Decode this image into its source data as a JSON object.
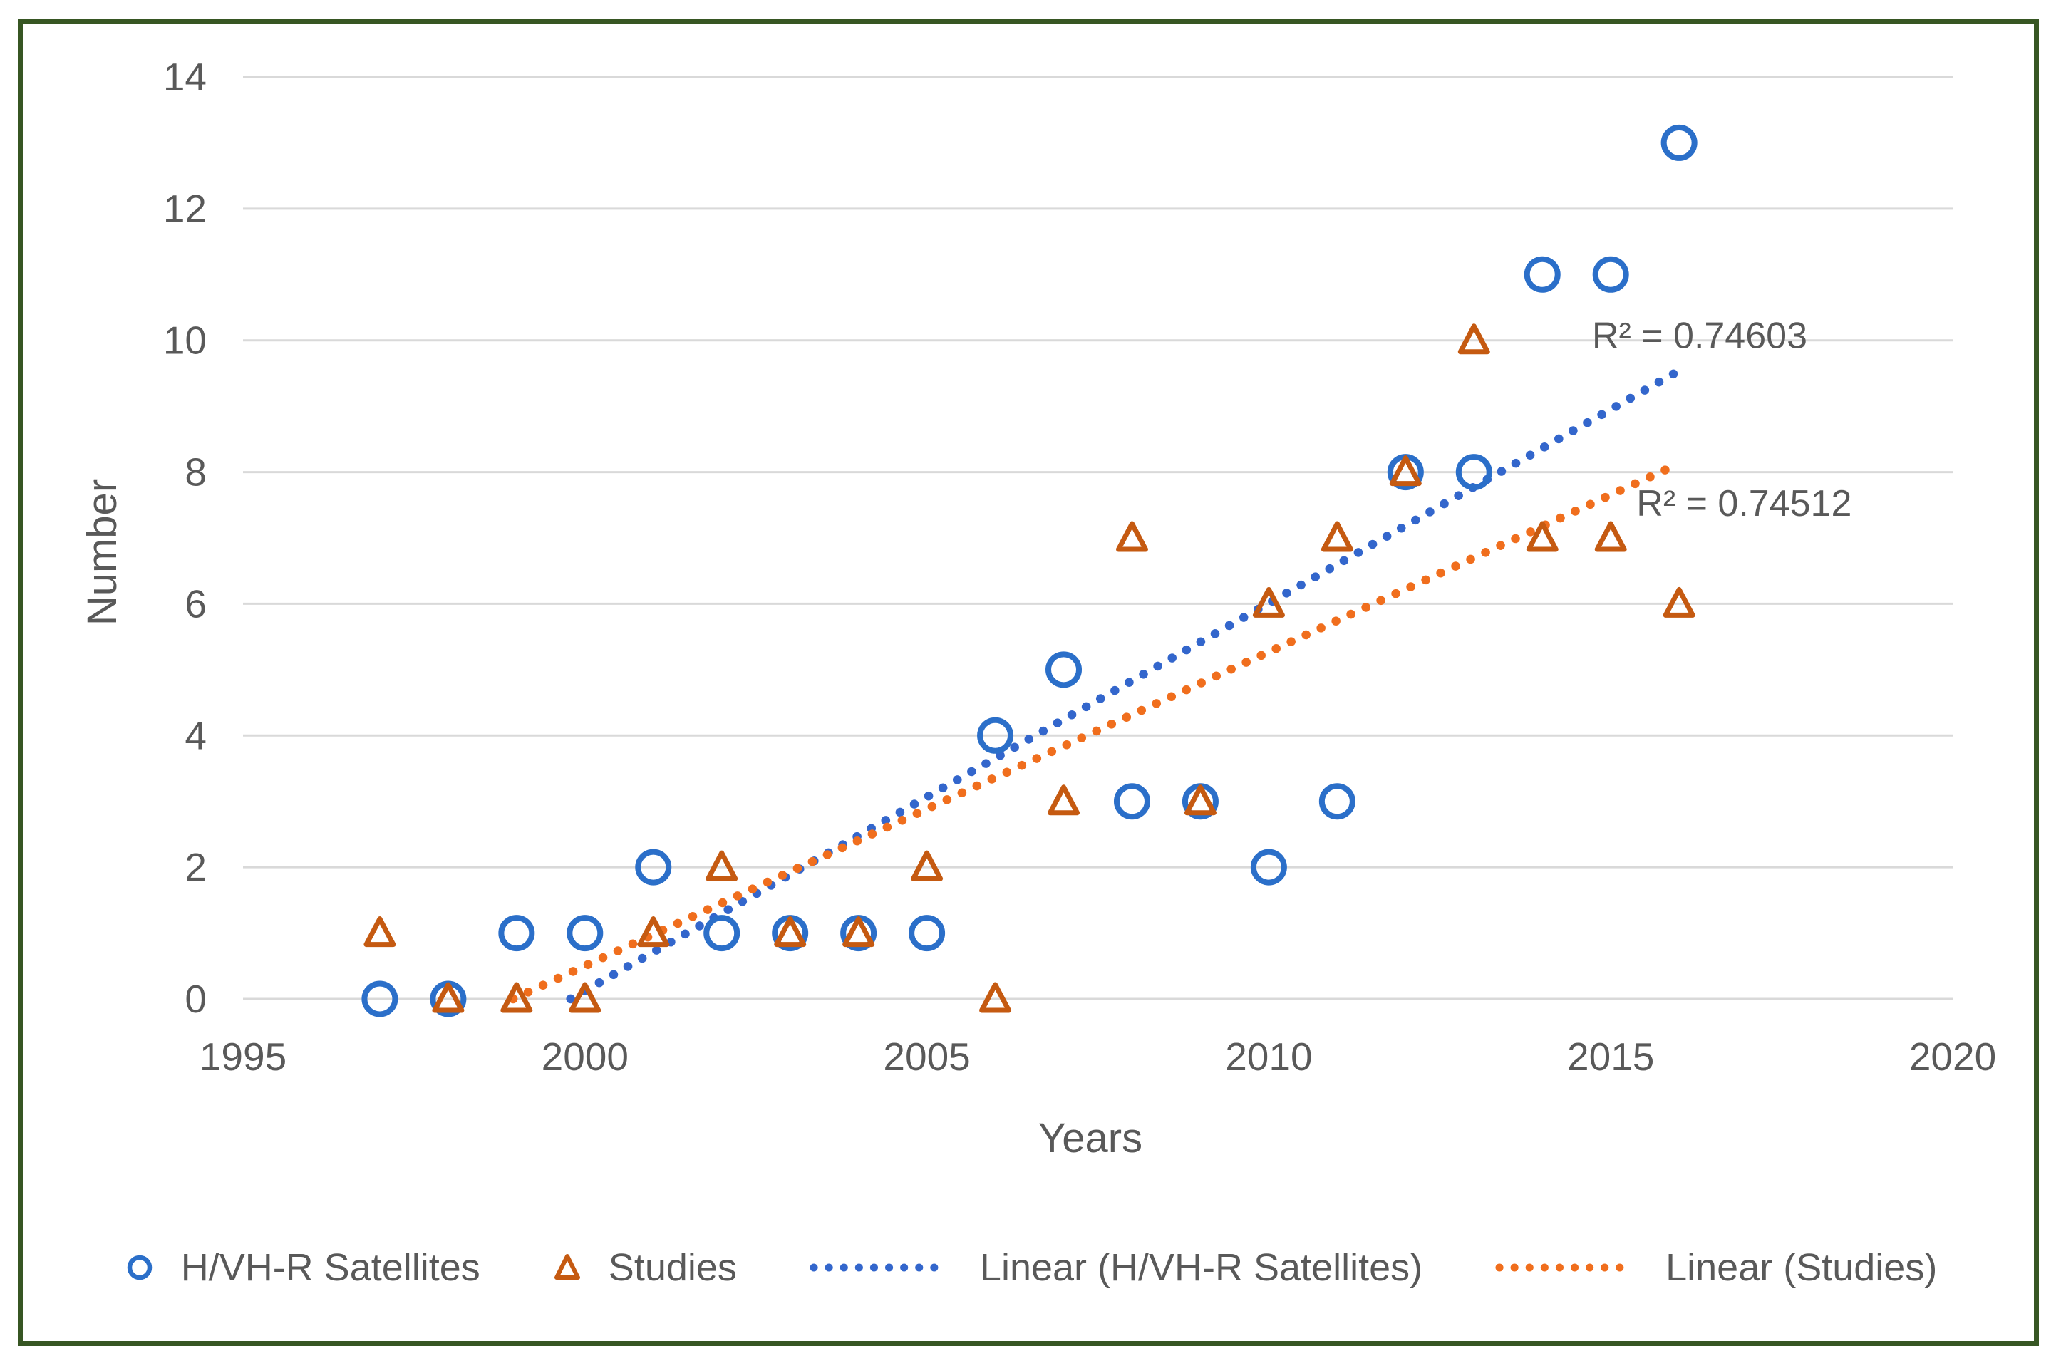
{
  "figure": {
    "background": "#FFFFFF",
    "border_color": "#375623"
  },
  "chart_data": {
    "type": "scatter",
    "title": "",
    "xlabel": "Years",
    "ylabel": "Number",
    "xlim": [
      1995,
      2020
    ],
    "ylim": [
      0,
      14
    ],
    "x_ticks": [
      1995,
      2000,
      2005,
      2010,
      2015,
      2020
    ],
    "y_ticks": [
      0,
      2,
      4,
      6,
      8,
      10,
      12,
      14
    ],
    "grid": "horizontal-only",
    "grid_color": "#D9D9D9",
    "text_color": "#595959",
    "x": [
      1997,
      1998,
      1999,
      2000,
      2001,
      2002,
      2003,
      2004,
      2005,
      2006,
      2007,
      2008,
      2009,
      2010,
      2011,
      2012,
      2013,
      2014,
      2015,
      2016
    ],
    "series": [
      {
        "name": "H/VH-R Satellites",
        "marker": "circle",
        "color": "#2B6FC9",
        "values": [
          0,
          0,
          1,
          1,
          2,
          1,
          1,
          1,
          1,
          4,
          5,
          3,
          3,
          2,
          3,
          8,
          8,
          11,
          11,
          13
        ]
      },
      {
        "name": "Studies",
        "marker": "triangle",
        "color": "#C55A11",
        "values": [
          1,
          0,
          0,
          0,
          1,
          2,
          1,
          1,
          2,
          0,
          3,
          7,
          3,
          6,
          7,
          8,
          10,
          7,
          7,
          6
        ]
      }
    ],
    "trendlines": [
      {
        "series": "H/VH-R Satellites",
        "style": "dotted",
        "color": "#3366CC",
        "start": {
          "x": 1999.79,
          "y": 0
        },
        "end": {
          "x": 2016,
          "y": 9.54
        },
        "r2": 0.74603
      },
      {
        "series": "Studies",
        "style": "dotted",
        "color": "#F06E1D",
        "start": {
          "x": 1998.95,
          "y": 0
        },
        "end": {
          "x": 2016,
          "y": 8.13
        },
        "r2": 0.74512
      }
    ],
    "annotations": [
      {
        "text": "R² = 0.74603",
        "x": 2016.3,
        "y": 10.08
      },
      {
        "text": "R² = 0.74512",
        "x": 2016.95,
        "y": 7.53
      }
    ],
    "legend": {
      "position": "bottom",
      "items": [
        {
          "label": "H/VH-R Satellites",
          "marker": "circle"
        },
        {
          "label": "Studies",
          "marker": "triangle"
        },
        {
          "label": "Linear (H/VH-R Satellites)",
          "marker": "dotted-blue"
        },
        {
          "label": "Linear (Studies)",
          "marker": "dotted-orange"
        }
      ]
    }
  }
}
